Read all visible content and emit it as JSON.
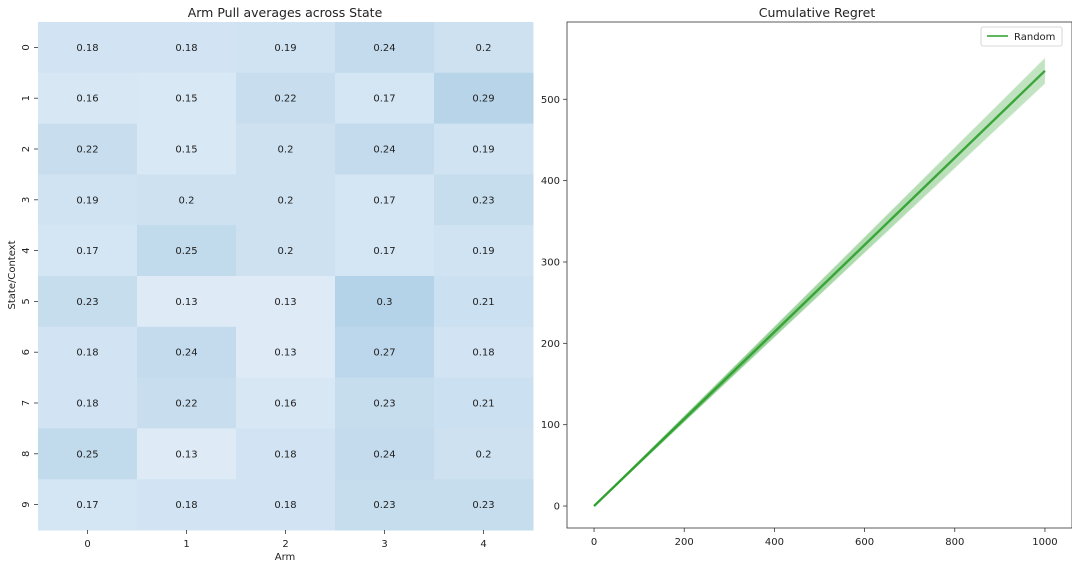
{
  "chart_data": [
    {
      "type": "heatmap",
      "title": "Arm Pull averages across State",
      "xlabel": "Arm",
      "ylabel": "State/Context",
      "x_categories": [
        "0",
        "1",
        "2",
        "3",
        "4"
      ],
      "y_categories": [
        "0",
        "1",
        "2",
        "3",
        "4",
        "5",
        "6",
        "7",
        "8",
        "9"
      ],
      "values": [
        [
          0.18,
          0.18,
          0.19,
          0.24,
          0.2
        ],
        [
          0.16,
          0.15,
          0.22,
          0.17,
          0.29
        ],
        [
          0.22,
          0.15,
          0.2,
          0.24,
          0.19
        ],
        [
          0.19,
          0.2,
          0.2,
          0.17,
          0.23
        ],
        [
          0.17,
          0.25,
          0.2,
          0.17,
          0.19
        ],
        [
          0.23,
          0.13,
          0.13,
          0.3,
          0.21
        ],
        [
          0.18,
          0.24,
          0.13,
          0.27,
          0.18
        ],
        [
          0.18,
          0.22,
          0.16,
          0.23,
          0.21
        ],
        [
          0.25,
          0.13,
          0.18,
          0.24,
          0.2
        ],
        [
          0.17,
          0.18,
          0.18,
          0.23,
          0.23
        ]
      ],
      "colormap": {
        "low": "#deebf7",
        "high": "#b5d3e8"
      },
      "value_range": [
        0.13,
        0.3
      ],
      "colorbar": false,
      "gridlines": false
    },
    {
      "type": "line",
      "title": "Cumulative Regret",
      "xlabel": "",
      "ylabel": "",
      "xlim": [
        0,
        1000
      ],
      "ylim": [
        0,
        550
      ],
      "x_ticks": [
        0,
        200,
        400,
        600,
        800,
        1000
      ],
      "y_ticks": [
        0,
        100,
        200,
        300,
        400,
        500
      ],
      "legend": {
        "placement": "top-right",
        "entries": [
          "Random"
        ]
      },
      "series": [
        {
          "name": "Random",
          "color": "#2ca02c",
          "x": [
            0,
            1000
          ],
          "y": [
            0,
            535
          ],
          "band": {
            "low_end": 520,
            "high_end": 550
          }
        }
      ],
      "grid": false
    }
  ]
}
